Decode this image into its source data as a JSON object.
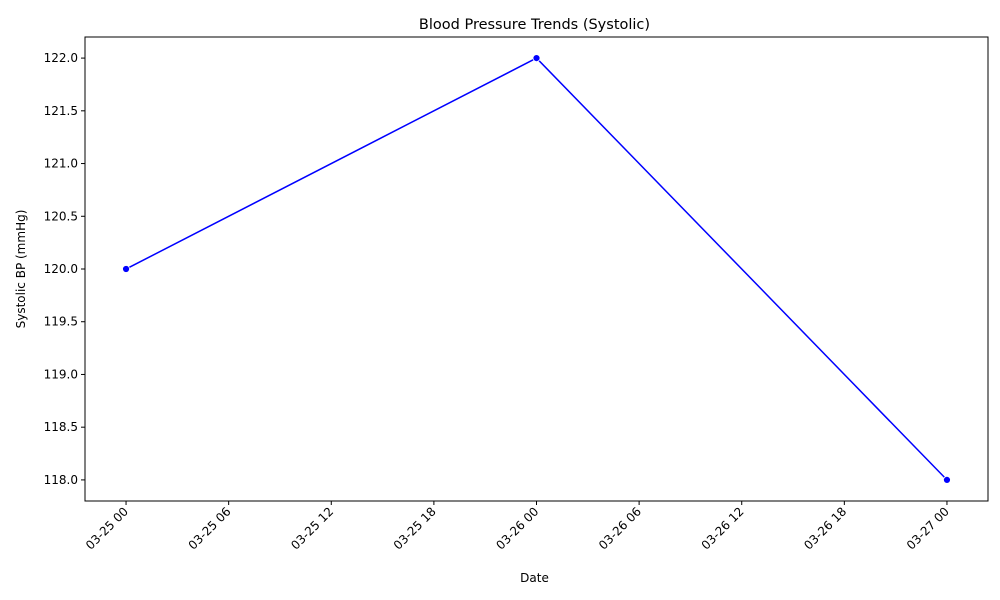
{
  "chart_data": {
    "type": "line",
    "title": "Blood Pressure Trends (Systolic)",
    "xlabel": "Date",
    "ylabel": "Systolic BP (mmHg)",
    "x": [
      "2024-03-25T00:00",
      "2024-03-26T00:00",
      "2024-03-27T00:00"
    ],
    "series": [
      {
        "values": [
          120,
          122,
          118
        ],
        "color": "#0000ff",
        "marker": "circle"
      }
    ],
    "x_ticks": [
      "03-25 00",
      "03-25 06",
      "03-25 12",
      "03-25 18",
      "03-26 00",
      "03-26 06",
      "03-26 12",
      "03-26 18",
      "03-27 00"
    ],
    "y_ticks": [
      "118.0",
      "118.5",
      "119.0",
      "119.5",
      "120.0",
      "120.5",
      "121.0",
      "121.5",
      "122.0"
    ],
    "ylim": [
      117.8,
      122.2
    ],
    "grid": false,
    "legend": "none"
  }
}
